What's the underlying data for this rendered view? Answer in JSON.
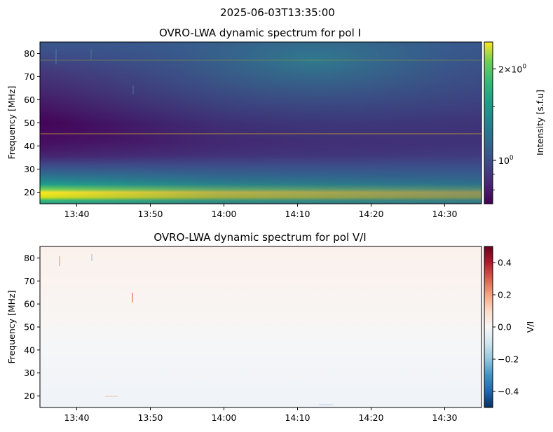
{
  "suptitle": "2025-06-03T13:35:00",
  "chart_data": [
    {
      "type": "heatmap",
      "title": "OVRO-LWA dynamic spectrum for pol I",
      "xlabel": "",
      "ylabel": "Frequency [MHz]",
      "x_ticks": [
        "13:40",
        "13:50",
        "14:00",
        "14:10",
        "14:20",
        "14:30"
      ],
      "x_tick_values_min": [
        5,
        15,
        25,
        35,
        45,
        55
      ],
      "xlim_min": [
        0,
        60
      ],
      "x_start": "13:35",
      "x_end": "14:35",
      "y_ticks": [
        20,
        30,
        40,
        50,
        60,
        70,
        80
      ],
      "ylim": [
        15,
        85
      ],
      "colormap": "viridis",
      "colorbar": {
        "label": "Intensity [s.f.u]",
        "scale": "log",
        "range": [
          0.72,
          2.45
        ],
        "major_ticks": [
          1,
          2
        ],
        "major_tick_labels": [
          "10^0",
          "2×10^0"
        ],
        "minor_ticks": [
          0.8,
          0.9,
          1.0,
          1.5
        ]
      },
      "features": {
        "bright_band_mhz": [
          15,
          22
        ],
        "enhanced_emission_start_min": 18,
        "horizontal_lines_mhz": [
          45,
          77
        ]
      }
    },
    {
      "type": "heatmap",
      "title": "OVRO-LWA dynamic spectrum for pol V/I",
      "xlabel": "",
      "ylabel": "Frequency [MHz]",
      "x_ticks": [
        "13:40",
        "13:50",
        "14:00",
        "14:10",
        "14:20",
        "14:30"
      ],
      "x_tick_values_min": [
        5,
        15,
        25,
        35,
        45,
        55
      ],
      "xlim_min": [
        0,
        60
      ],
      "y_ticks": [
        20,
        30,
        40,
        50,
        60,
        70,
        80
      ],
      "ylim": [
        15,
        85
      ],
      "colormap": "RdBu_r",
      "colorbar": {
        "label": "V/I",
        "scale": "linear",
        "range": [
          -0.5,
          0.5
        ],
        "ticks": [
          0.4,
          0.2,
          0.0,
          -0.2,
          -0.4
        ],
        "tick_labels": [
          "0.4",
          "0.2",
          "0.0",
          "−0.2",
          "−0.4"
        ]
      }
    }
  ],
  "colors": {
    "viridis_dark": "#440154",
    "viridis_yellow": "#fde725",
    "rdbu_red": "#67001f",
    "rdbu_blue": "#053061"
  }
}
